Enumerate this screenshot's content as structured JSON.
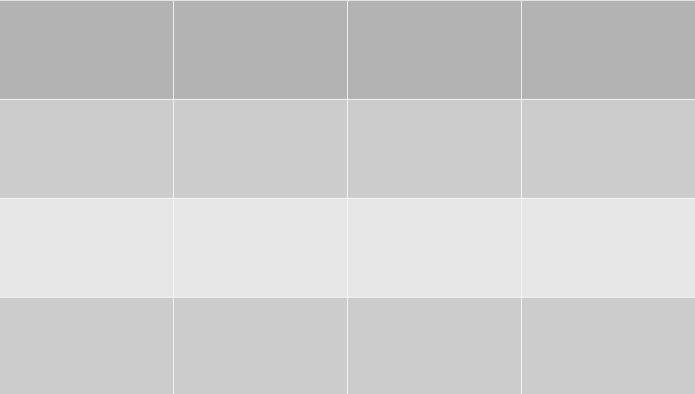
{
  "grid": {
    "columns": 4,
    "rows": [
      {
        "name": "row-1",
        "color": "#b3b3b3",
        "cells": [
          "",
          "",
          "",
          ""
        ]
      },
      {
        "name": "row-2",
        "color": "#cccccc",
        "cells": [
          "",
          "",
          "",
          ""
        ]
      },
      {
        "name": "row-3",
        "color": "#e6e6e6",
        "cells": [
          "",
          "",
          "",
          ""
        ]
      },
      {
        "name": "row-4",
        "color": "#cccccc",
        "cells": [
          "",
          "",
          "",
          ""
        ]
      }
    ]
  }
}
